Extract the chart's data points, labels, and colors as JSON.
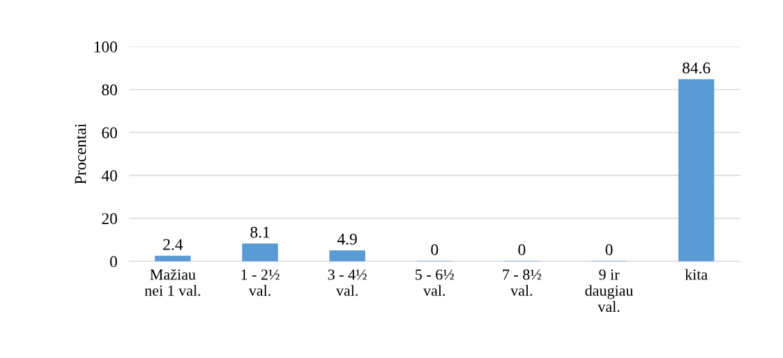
{
  "chart_data": {
    "type": "bar",
    "ylabel": "Procentai",
    "categories": [
      "Mažiau\nnei 1 val.",
      "1 - 2½\nval.",
      "3 - 4½\nval.",
      "5 - 6½\nval.",
      "7 - 8½\nval.",
      "9 ir\ndaugiau\nval.",
      "kita"
    ],
    "values": [
      2.4,
      8.1,
      4.9,
      0,
      0,
      0,
      84.6
    ],
    "color": "#5b9bd5",
    "ylim": [
      0,
      100
    ],
    "yticks": [
      0,
      20,
      40,
      60,
      80,
      100
    ],
    "grid": "y",
    "data_labels": true
  }
}
